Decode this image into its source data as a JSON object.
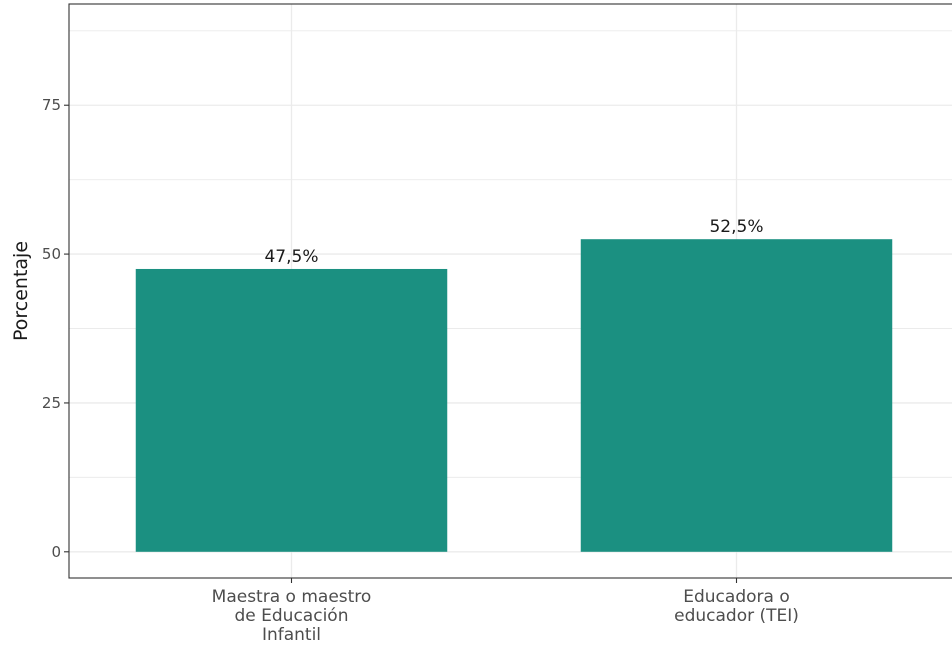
{
  "chart_data": {
    "type": "bar",
    "categories": [
      [
        "Maestra o maestro",
        "de Educación",
        "Infantil"
      ],
      [
        "Educadora o",
        "educador (TEI)"
      ]
    ],
    "values": [
      47.5,
      52.5
    ],
    "data_labels": [
      "47,5%",
      "52,5%"
    ],
    "ylabel": "Porcentaje",
    "xlabel": "",
    "ylim": [
      -4.4,
      92
    ],
    "yticks": [
      0,
      25,
      50,
      75
    ],
    "ytick_labels": [
      "0",
      "25",
      "50",
      "75"
    ],
    "grid": true,
    "bar_color": "#1b9081",
    "panel_border_color": "#333333",
    "grid_color": "#ebebeb",
    "legend": "none"
  }
}
